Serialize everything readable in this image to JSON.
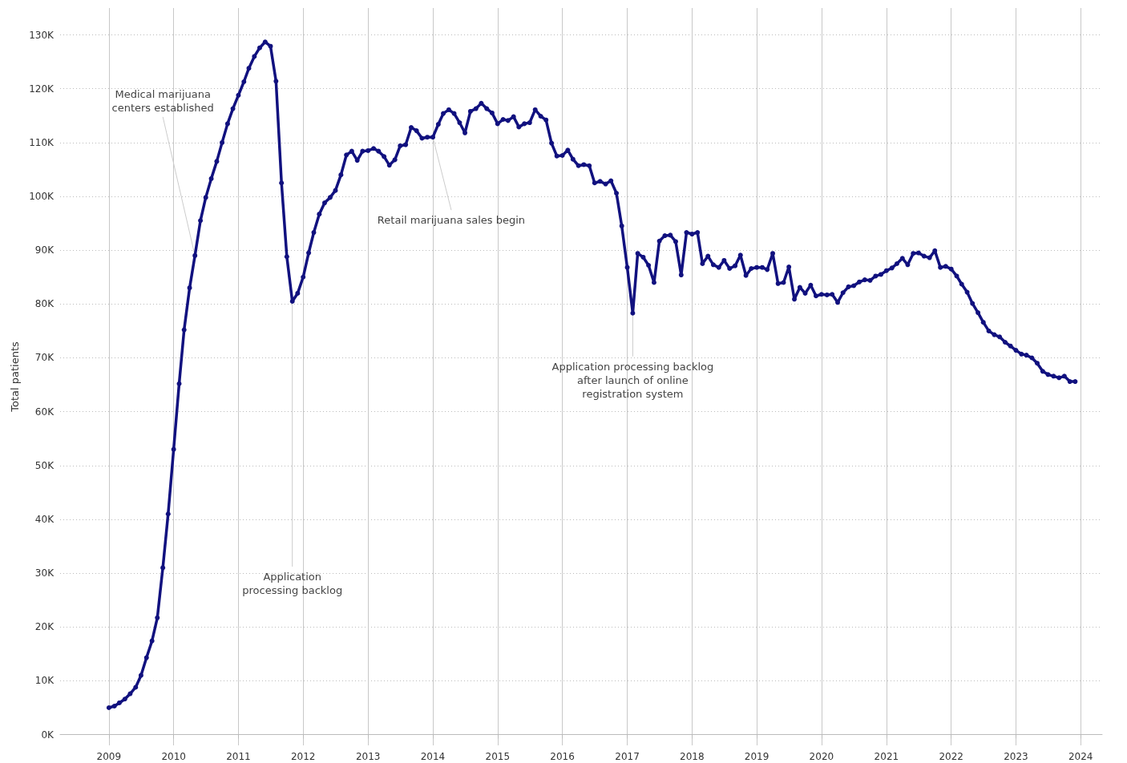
{
  "chart_data": {
    "type": "line",
    "ylabel": "Total patients",
    "x": [
      "2009-01",
      "2009-02",
      "2009-03",
      "2009-04",
      "2009-05",
      "2009-06",
      "2009-07",
      "2009-08",
      "2009-09",
      "2009-10",
      "2009-11",
      "2009-12",
      "2010-01",
      "2010-02",
      "2010-03",
      "2010-04",
      "2010-05",
      "2010-06",
      "2010-07",
      "2010-08",
      "2010-09",
      "2010-10",
      "2010-11",
      "2010-12",
      "2011-01",
      "2011-02",
      "2011-03",
      "2011-04",
      "2011-05",
      "2011-06",
      "2011-07",
      "2011-08",
      "2011-09",
      "2011-10",
      "2011-11",
      "2011-12",
      "2012-01",
      "2012-02",
      "2012-03",
      "2012-04",
      "2012-05",
      "2012-06",
      "2012-07",
      "2012-08",
      "2012-09",
      "2012-10",
      "2012-11",
      "2012-12",
      "2013-01",
      "2013-02",
      "2013-03",
      "2013-04",
      "2013-05",
      "2013-06",
      "2013-07",
      "2013-08",
      "2013-09",
      "2013-10",
      "2013-11",
      "2013-12",
      "2014-01",
      "2014-02",
      "2014-03",
      "2014-04",
      "2014-05",
      "2014-06",
      "2014-07",
      "2014-08",
      "2014-09",
      "2014-10",
      "2014-11",
      "2014-12",
      "2015-01",
      "2015-02",
      "2015-03",
      "2015-04",
      "2015-05",
      "2015-06",
      "2015-07",
      "2015-08",
      "2015-09",
      "2015-10",
      "2015-11",
      "2015-12",
      "2016-01",
      "2016-02",
      "2016-03",
      "2016-04",
      "2016-05",
      "2016-06",
      "2016-07",
      "2016-08",
      "2016-09",
      "2016-10",
      "2016-11",
      "2016-12",
      "2017-01",
      "2017-02",
      "2017-03",
      "2017-04",
      "2017-05",
      "2017-06",
      "2017-07",
      "2017-08",
      "2017-09",
      "2017-10",
      "2017-11",
      "2017-12",
      "2018-01",
      "2018-02",
      "2018-03",
      "2018-04",
      "2018-05",
      "2018-06",
      "2018-07",
      "2018-08",
      "2018-09",
      "2018-10",
      "2018-11",
      "2018-12",
      "2019-01",
      "2019-02",
      "2019-03",
      "2019-04",
      "2019-05",
      "2019-06",
      "2019-07",
      "2019-08",
      "2019-09",
      "2019-10",
      "2019-11",
      "2019-12",
      "2020-01",
      "2020-02",
      "2020-03",
      "2020-04",
      "2020-05",
      "2020-06",
      "2020-07",
      "2020-08",
      "2020-09",
      "2020-10",
      "2020-11",
      "2020-12",
      "2021-01",
      "2021-02",
      "2021-03",
      "2021-04",
      "2021-05",
      "2021-06",
      "2021-07",
      "2021-08",
      "2021-09",
      "2021-10",
      "2021-11",
      "2021-12",
      "2022-01",
      "2022-02",
      "2022-03",
      "2022-04",
      "2022-05",
      "2022-06",
      "2022-07",
      "2022-08",
      "2022-09",
      "2022-10",
      "2022-11",
      "2022-12",
      "2023-01",
      "2023-02",
      "2023-03",
      "2023-04",
      "2023-05",
      "2023-06",
      "2023-07",
      "2023-08",
      "2023-09",
      "2023-10",
      "2023-11",
      "2023-12"
    ],
    "series": [
      {
        "color": "#11117f",
        "values": [
          5.0,
          5.3,
          5.9,
          6.6,
          7.6,
          8.8,
          11.0,
          14.3,
          17.4,
          21.7,
          31.0,
          41.0,
          53.0,
          65.2,
          75.2,
          83.0,
          89.0,
          95.5,
          99.8,
          103.3,
          106.5,
          110.0,
          113.5,
          116.3,
          118.8,
          121.3,
          123.8,
          126.0,
          127.6,
          128.7,
          127.9,
          121.4,
          102.5,
          88.8,
          80.5,
          82.0,
          85.0,
          89.5,
          93.3,
          96.7,
          98.8,
          99.8,
          101.1,
          104.0,
          107.7,
          108.4,
          106.7,
          108.4,
          108.5,
          108.9,
          108.4,
          107.4,
          105.8,
          106.8,
          109.4,
          109.6,
          112.8,
          112.2,
          110.8,
          111.0,
          111.0,
          113.4,
          115.4,
          116.1,
          115.4,
          113.7,
          111.8,
          115.8,
          116.3,
          117.3,
          116.3,
          115.5,
          113.5,
          114.3,
          114.1,
          114.8,
          112.9,
          113.5,
          113.7,
          116.1,
          114.9,
          114.2,
          109.9,
          107.5,
          107.6,
          108.6,
          106.9,
          105.7,
          105.9,
          105.7,
          102.5,
          102.8,
          102.3,
          102.9,
          100.6,
          94.5,
          86.8,
          78.3,
          89.4,
          88.7,
          87.2,
          84.0,
          91.7,
          92.7,
          92.8,
          91.6,
          85.4,
          93.3,
          93.0,
          93.3,
          87.5,
          88.9,
          87.3,
          86.8,
          88.1,
          86.6,
          87.1,
          89.1,
          85.3,
          86.6,
          86.8,
          86.8,
          86.4,
          89.4,
          83.8,
          84.0,
          86.9,
          80.9,
          83.1,
          82.0,
          83.5,
          81.5,
          81.8,
          81.7,
          81.8,
          80.3,
          82.1,
          83.2,
          83.4,
          84.1,
          84.5,
          84.4,
          85.2,
          85.5,
          86.2,
          86.7,
          87.5,
          88.5,
          87.3,
          89.4,
          89.5,
          88.9,
          88.6,
          89.9,
          86.8,
          87.0,
          86.5,
          85.2,
          83.7,
          82.2,
          80.1,
          78.4,
          76.6,
          75.0,
          74.3,
          73.9,
          72.9,
          72.2,
          71.4,
          70.7,
          70.5,
          70.0,
          69.0,
          67.5,
          66.9,
          66.6,
          66.3,
          66.6,
          65.6,
          65.6
        ]
      }
    ],
    "xlim": [
      "2008-04",
      "2024-05"
    ],
    "xticks": [
      "2009",
      "2010",
      "2011",
      "2012",
      "2013",
      "2014",
      "2015",
      "2016",
      "2017",
      "2018",
      "2019",
      "2020",
      "2021",
      "2022",
      "2023",
      "2024"
    ],
    "ylim": [
      -2,
      135
    ],
    "yticks": [
      {
        "value": 0,
        "label": "0K"
      },
      {
        "value": 10,
        "label": "10K"
      },
      {
        "value": 20,
        "label": "20K"
      },
      {
        "value": 30,
        "label": "30K"
      },
      {
        "value": 40,
        "label": "40K"
      },
      {
        "value": 50,
        "label": "50K"
      },
      {
        "value": 60,
        "label": "60K"
      },
      {
        "value": 70,
        "label": "70K"
      },
      {
        "value": 80,
        "label": "80K"
      },
      {
        "value": 90,
        "label": "90K"
      },
      {
        "value": 100,
        "label": "100K"
      },
      {
        "value": 110,
        "label": "110K"
      },
      {
        "value": 120,
        "label": "120K"
      },
      {
        "value": 130,
        "label": "130K"
      }
    ],
    "grid": true,
    "marker": "circle",
    "line_style": "solid",
    "annotations": [
      {
        "text": "Medical marijuana\ncenters established",
        "x": "2010-05",
        "y": 89.0
      },
      {
        "text": "Application\nprocessing backlog",
        "x": "2011-11",
        "y": 80.5
      },
      {
        "text": "Retail marijuana sales begin",
        "x": "2014-01",
        "y": 111.0
      },
      {
        "text": "Application processing backlog\nafter launch of online\nregistration system",
        "x": "2017-02",
        "y": 78.3
      }
    ]
  }
}
